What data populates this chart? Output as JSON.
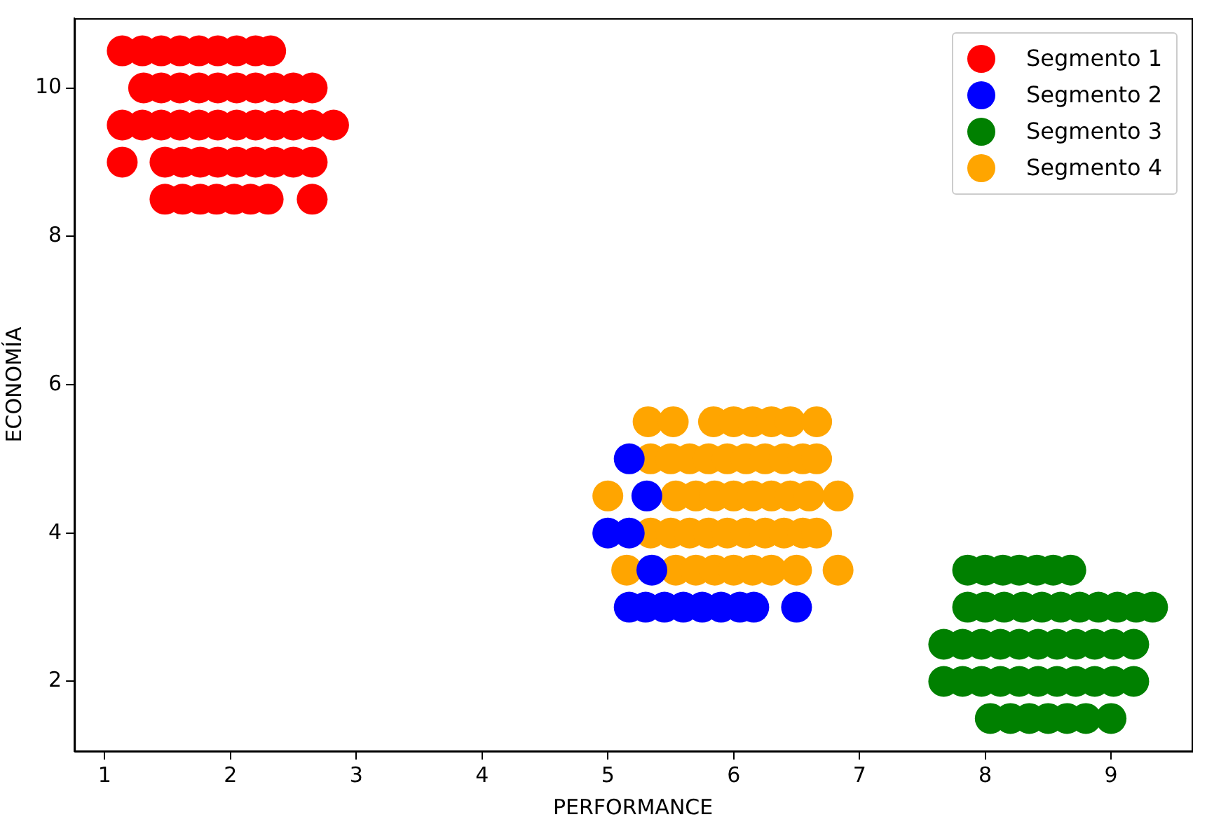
{
  "chart_data": {
    "type": "scatter",
    "xlabel": "PERFORMANCE",
    "ylabel": "ECONOMÍA",
    "xlim": [
      0.76,
      9.64
    ],
    "ylim": [
      1.06,
      10.94
    ],
    "xticks": [
      1,
      2,
      3,
      4,
      5,
      6,
      7,
      8,
      9
    ],
    "yticks": [
      2,
      4,
      6,
      8,
      10
    ],
    "grid": false,
    "legend": "top right",
    "marker": "circle",
    "series": [
      {
        "name": "Segmento 1",
        "color": "#ff0000",
        "x": [
          1.14,
          1.3,
          1.45,
          1.6,
          1.75,
          1.9,
          2.05,
          2.2,
          2.32,
          1.31,
          1.45,
          1.6,
          1.75,
          1.9,
          2.05,
          2.2,
          2.35,
          2.5,
          2.65,
          1.14,
          1.3,
          1.45,
          1.6,
          1.75,
          1.9,
          2.05,
          2.2,
          2.35,
          2.5,
          2.65,
          2.82,
          1.14,
          1.48,
          1.62,
          1.76,
          1.9,
          2.05,
          2.2,
          2.35,
          2.5,
          2.65,
          1.48,
          1.62,
          1.76,
          1.89,
          2.03,
          2.16,
          2.3,
          2.65
        ],
        "values": [
          10.5,
          10.5,
          10.5,
          10.5,
          10.5,
          10.5,
          10.5,
          10.5,
          10.5,
          10,
          10,
          10,
          10,
          10,
          10,
          10,
          10,
          10,
          10,
          9.5,
          9.5,
          9.5,
          9.5,
          9.5,
          9.5,
          9.5,
          9.5,
          9.5,
          9.5,
          9.5,
          9.5,
          9,
          9,
          9,
          9,
          9,
          9,
          9,
          9,
          9,
          9,
          8.5,
          8.5,
          8.5,
          8.5,
          8.5,
          8.5,
          8.5,
          8.5
        ]
      },
      {
        "name": "Segmento 2",
        "color": "#0000ff",
        "x": [
          5.17,
          5.31,
          5.0,
          5.17,
          5.35,
          5.17,
          5.3,
          5.45,
          5.6,
          5.75,
          5.9,
          6.05,
          6.16,
          6.5
        ],
        "values": [
          5,
          4.5,
          4,
          4,
          3.5,
          3,
          3,
          3,
          3,
          3,
          3,
          3,
          3,
          3
        ]
      },
      {
        "name": "Segmento 3",
        "color": "#008000",
        "x": [
          7.86,
          8.0,
          8.14,
          8.27,
          8.41,
          8.54,
          8.68,
          7.86,
          8.0,
          8.15,
          8.3,
          8.45,
          8.6,
          8.75,
          8.9,
          9.05,
          9.2,
          9.33,
          7.67,
          7.82,
          7.97,
          8.12,
          8.27,
          8.42,
          8.57,
          8.72,
          8.87,
          9.02,
          9.18,
          7.67,
          7.82,
          7.97,
          8.12,
          8.27,
          8.42,
          8.57,
          8.72,
          8.87,
          9.02,
          9.18,
          8.04,
          8.2,
          8.35,
          8.5,
          8.65,
          8.8,
          9.0
        ],
        "values": [
          3.5,
          3.5,
          3.5,
          3.5,
          3.5,
          3.5,
          3.5,
          3,
          3,
          3,
          3,
          3,
          3,
          3,
          3,
          3,
          3,
          3,
          2.5,
          2.5,
          2.5,
          2.5,
          2.5,
          2.5,
          2.5,
          2.5,
          2.5,
          2.5,
          2.5,
          2,
          2,
          2,
          2,
          2,
          2,
          2,
          2,
          2,
          2,
          2,
          1.5,
          1.5,
          1.5,
          1.5,
          1.5,
          1.5,
          1.5
        ]
      },
      {
        "name": "Segmento 4",
        "color": "#ffa500",
        "x": [
          5.32,
          5.52,
          5.84,
          6.0,
          6.15,
          6.3,
          6.45,
          6.66,
          5.34,
          5.5,
          5.65,
          5.8,
          5.95,
          6.1,
          6.25,
          6.4,
          6.55,
          6.66,
          5.0,
          5.54,
          5.7,
          5.85,
          6.0,
          6.15,
          6.3,
          6.45,
          6.6,
          6.83,
          5.34,
          5.5,
          5.65,
          5.8,
          5.95,
          6.1,
          6.25,
          6.4,
          6.55,
          6.66,
          5.15,
          5.54,
          5.7,
          5.85,
          6.0,
          6.15,
          6.3,
          6.5,
          6.83
        ],
        "values": [
          5.5,
          5.5,
          5.5,
          5.5,
          5.5,
          5.5,
          5.5,
          5.5,
          5,
          5,
          5,
          5,
          5,
          5,
          5,
          5,
          5,
          5,
          4.5,
          4.5,
          4.5,
          4.5,
          4.5,
          4.5,
          4.5,
          4.5,
          4.5,
          4.5,
          4,
          4,
          4,
          4,
          4,
          4,
          4,
          4,
          4,
          4,
          3.5,
          3.5,
          3.5,
          3.5,
          3.5,
          3.5,
          3.5,
          3.5,
          3.5
        ]
      }
    ]
  }
}
